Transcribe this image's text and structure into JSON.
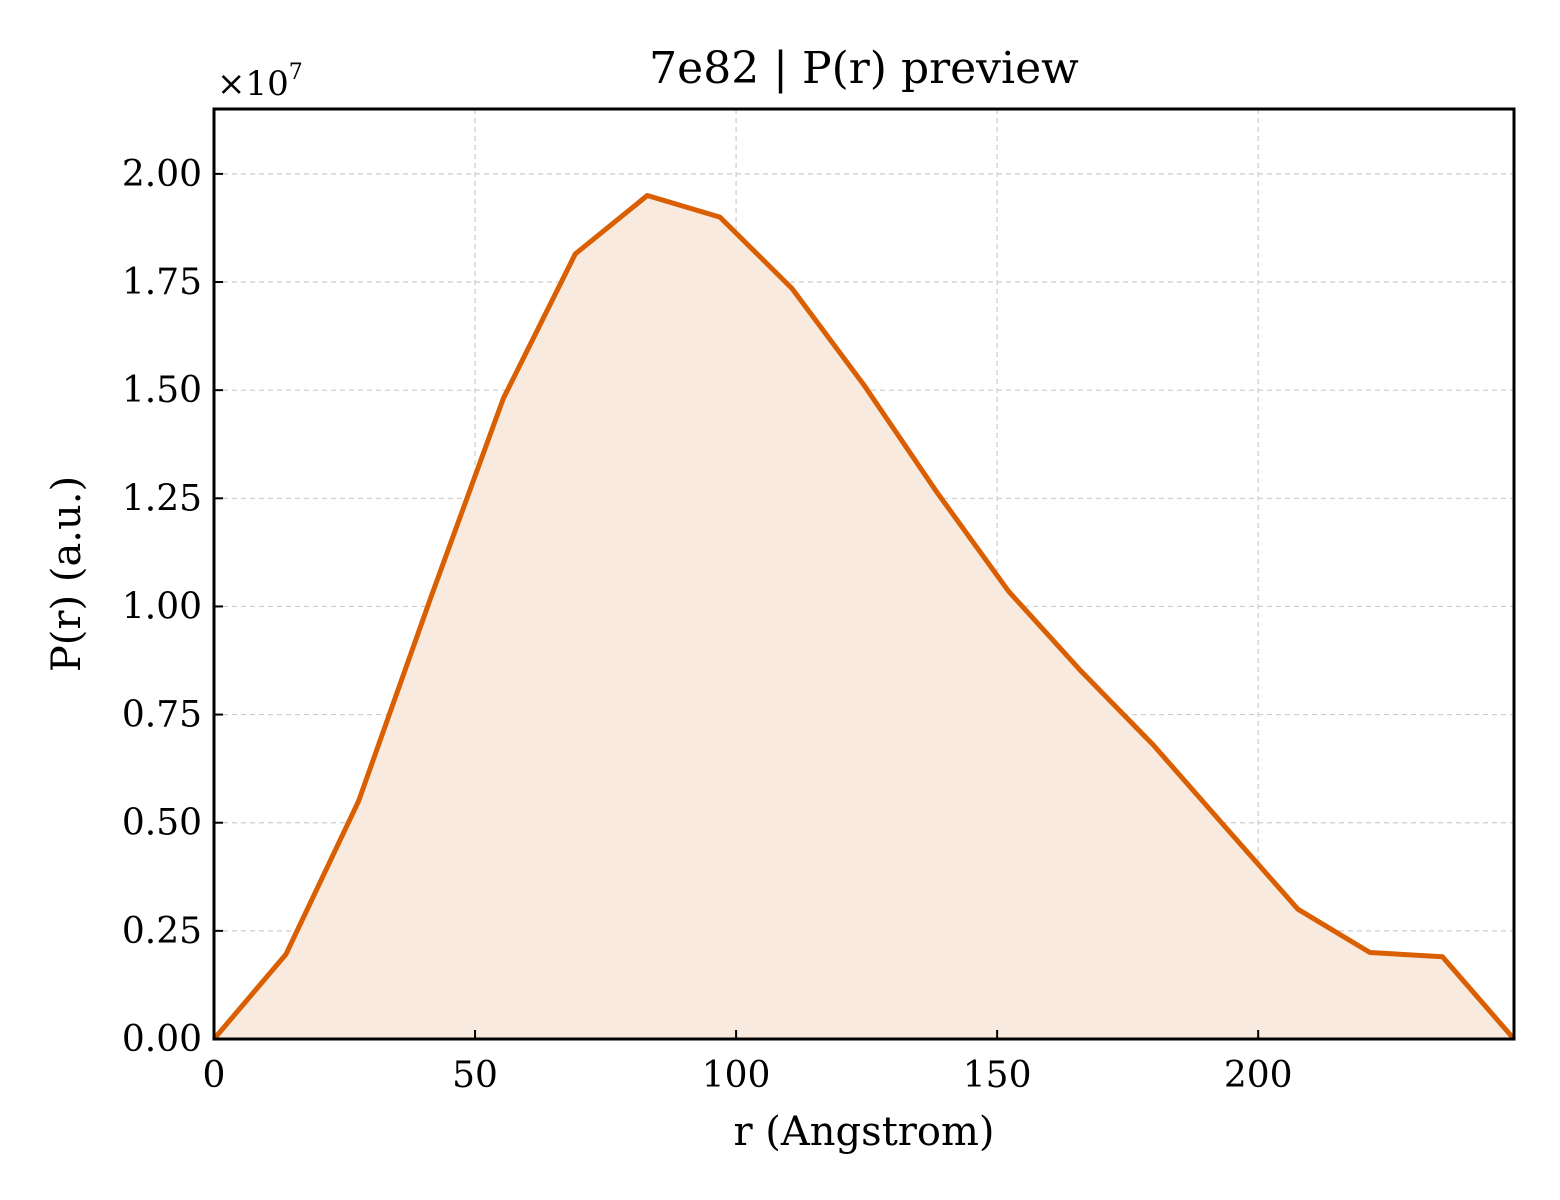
{
  "chart_data": {
    "type": "area",
    "title": "7e82 | P(r) preview",
    "xlabel": "r (Angstrom)",
    "ylabel": "P(r) (a.u.)",
    "y_offset_label": "×10",
    "y_offset_exponent": "7",
    "xlim": [
      0,
      249
    ],
    "ylim": [
      0,
      2.15
    ],
    "x_ticks": [
      0,
      50,
      100,
      150,
      200
    ],
    "x_tick_labels": [
      "0",
      "50",
      "100",
      "150",
      "200"
    ],
    "y_ticks": [
      0,
      0.25,
      0.5,
      0.75,
      1.0,
      1.25,
      1.5,
      1.75,
      2.0
    ],
    "y_tick_labels": [
      "0.00",
      "0.25",
      "0.50",
      "0.75",
      "1.00",
      "1.25",
      "1.50",
      "1.75",
      "2.00"
    ],
    "grid": true,
    "series": [
      {
        "color": "#d95f02",
        "fill_color": "#f9eadf",
        "x": [
          0,
          13.8,
          27.7,
          41.5,
          55.4,
          69.2,
          83.0,
          96.9,
          110.7,
          124.6,
          138.4,
          152.2,
          166.1,
          179.9,
          193.7,
          207.6,
          221.4,
          235.3,
          249
        ],
        "y": [
          0,
          0.196,
          0.55,
          1.02,
          1.48,
          1.815,
          1.95,
          1.9,
          1.735,
          1.51,
          1.265,
          1.035,
          0.85,
          0.68,
          0.49,
          0.3,
          0.2,
          0.19,
          0
        ]
      }
    ]
  }
}
